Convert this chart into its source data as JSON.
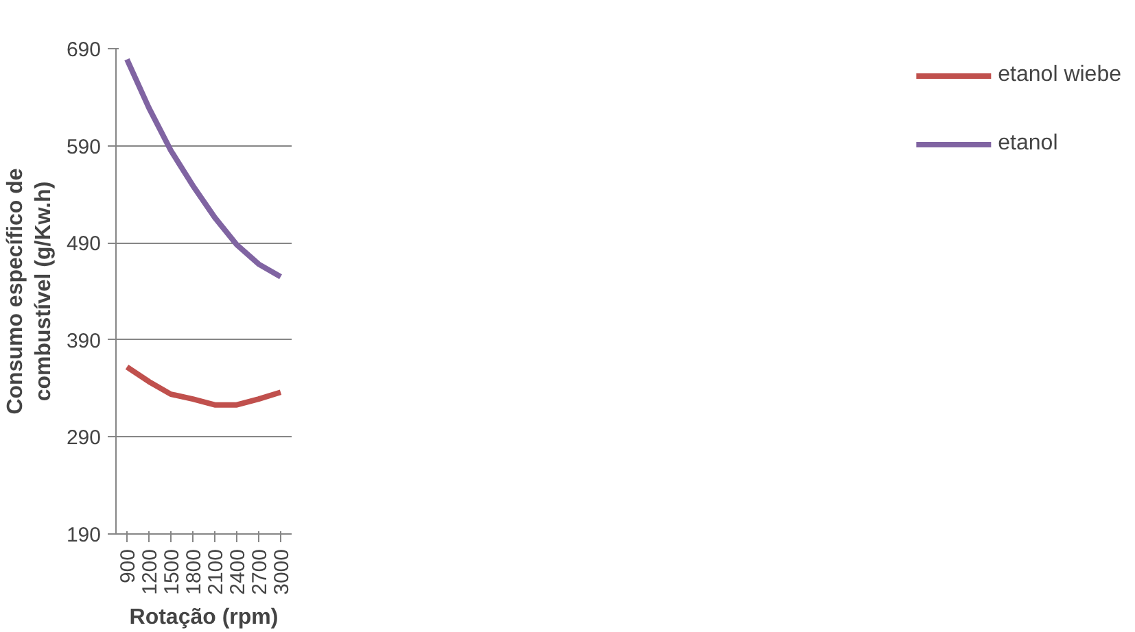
{
  "chart_data": {
    "type": "line",
    "xlabel": "Rotação (rpm)",
    "ylabel": "Consumo específico de\ncombustível (g/Kw.h)",
    "categories": [
      "900",
      "1200",
      "1500",
      "1800",
      "2100",
      "2400",
      "2700",
      "3000"
    ],
    "series": [
      {
        "name": "etanol wiebe",
        "color": "#c0504d",
        "values": [
          362,
          347,
          334,
          329,
          323,
          323,
          329,
          336
        ]
      },
      {
        "name": "etanol",
        "color": "#8064a2",
        "values": [
          679,
          629,
          585,
          549,
          516,
          488,
          468,
          455
        ]
      }
    ],
    "ylim": [
      190,
      690
    ],
    "yticks": [
      190,
      290,
      390,
      490,
      590,
      690
    ],
    "grid": "y",
    "legend": "right",
    "marker": "none",
    "line_style": "solid"
  }
}
